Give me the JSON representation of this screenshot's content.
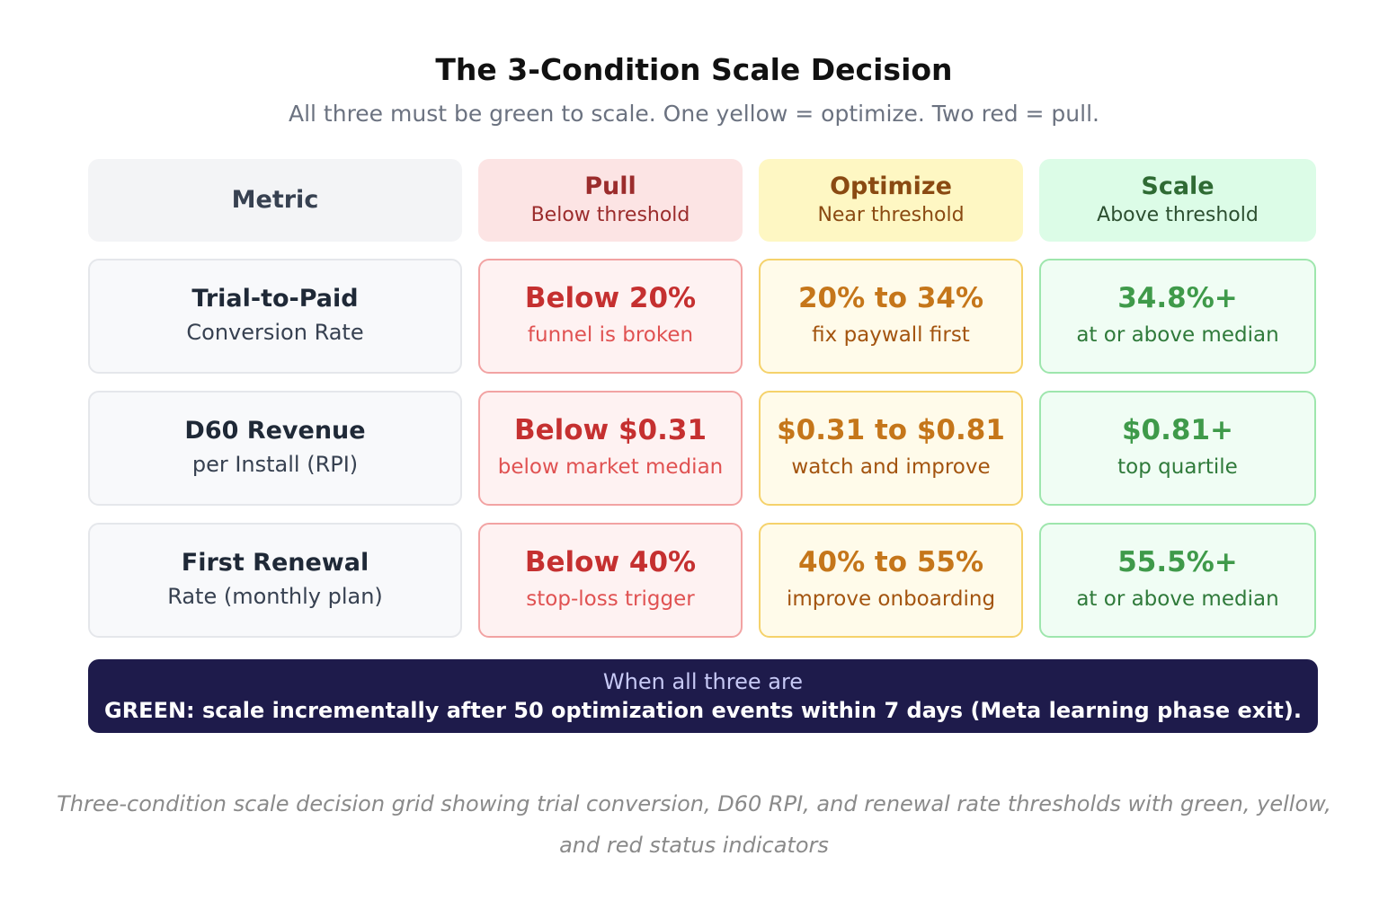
{
  "title": "The 3-Condition Scale Decision",
  "subtitle": "All three must be green to scale. One yellow = optimize. Two red = pull.",
  "header": {
    "metric": "Metric",
    "pull": {
      "title": "Pull",
      "sub": "Below threshold"
    },
    "optimize": {
      "title": "Optimize",
      "sub": "Near threshold"
    },
    "scale": {
      "title": "Scale",
      "sub": "Above threshold"
    }
  },
  "rows": [
    {
      "metric": {
        "name": "Trial-to-Paid",
        "sub": "Conversion Rate"
      },
      "pull": {
        "value": "Below 20%",
        "desc": "funnel is broken"
      },
      "optimize": {
        "value": "20% to 34%",
        "desc": "fix paywall first"
      },
      "scale": {
        "value": "34.8%+",
        "desc": "at or above median"
      }
    },
    {
      "metric": {
        "name": "D60 Revenue",
        "sub": "per Install (RPI)"
      },
      "pull": {
        "value": "Below $0.31",
        "desc": "below market median"
      },
      "optimize": {
        "value": "$0.31 to $0.81",
        "desc": "watch and improve"
      },
      "scale": {
        "value": "$0.81+",
        "desc": "top quartile"
      }
    },
    {
      "metric": {
        "name": "First Renewal",
        "sub": "Rate (monthly plan)"
      },
      "pull": {
        "value": "Below 40%",
        "desc": "stop-loss trigger"
      },
      "optimize": {
        "value": "40% to 55%",
        "desc": "improve onboarding"
      },
      "scale": {
        "value": "55.5%+",
        "desc": "at or above median"
      }
    }
  ],
  "banner": {
    "line1": "When all three are",
    "line2": "GREEN: scale incrementally after 50 optimization events within 7 days (Meta learning phase exit)."
  },
  "caption": "Three-condition scale decision grid showing trial conversion, D60 RPI, and renewal rate thresholds with green, yellow, and red status indicators",
  "colors": {
    "pull": "#c53030",
    "optimize": "#c5761a",
    "scale": "#3f9a4a",
    "banner_bg": "#1e1b4b"
  }
}
